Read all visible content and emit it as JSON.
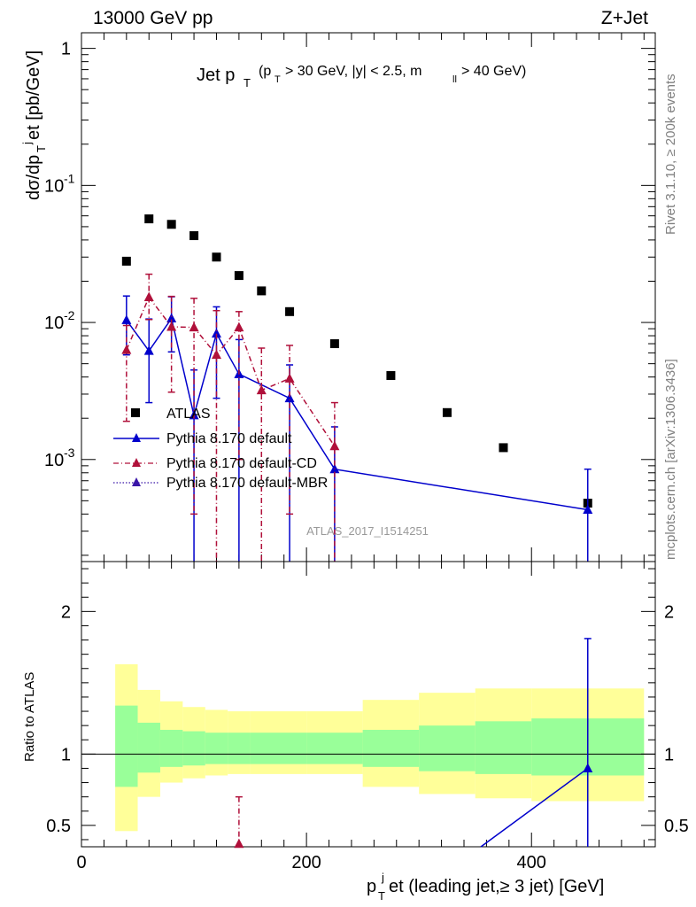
{
  "header": {
    "energy": "13000 GeV pp",
    "process": "Z+Jet",
    "title_main": "Jet p",
    "title_sub": "T",
    "title_cut_a": "(p",
    "title_cut_b": "T",
    "title_cut_c": "> 30 GeV, |y| < 2.5, m",
    "title_cut_d": "ll",
    "title_cut_e": "> 40 GeV)",
    "analysis_id": "ATLAS_2017_I1514251",
    "side_rivet": "Rivet 3.1.10, ≥ 200k events",
    "side_mcplots": "mcplots.cern.ch [arXiv:1306.3436]"
  },
  "chart_data": [
    {
      "type": "scatter",
      "panel": "main",
      "ylabel": "dσ/dp_T^jet [pb/GeV]",
      "yscale": "log",
      "xlim": [
        0,
        510
      ],
      "ylim": [
        0.00018,
        1.3
      ],
      "y_tick_labels": [
        "10^-3",
        "10^-2",
        "10^-1",
        "1"
      ],
      "legend": {
        "placement": "lower-left",
        "entries": [
          "ATLAS",
          "Pythia 8.170 default",
          "Pythia 8.170 default-CD",
          "Pythia 8.170 default-MBR"
        ]
      },
      "series": [
        {
          "name": "ATLAS",
          "color": "#000000",
          "marker": "square",
          "x": [
            40,
            60,
            80,
            100,
            120,
            140,
            160,
            185,
            225,
            275,
            325,
            375,
            450
          ],
          "y": [
            0.028,
            0.057,
            0.052,
            0.043,
            0.03,
            0.022,
            0.017,
            0.012,
            0.007,
            0.0041,
            0.0022,
            0.00122,
            0.00048
          ]
        },
        {
          "name": "Pythia 8.170 default",
          "color": "#0000cc",
          "marker": "triangle",
          "line": "solid",
          "x": [
            40,
            60,
            80,
            100,
            120,
            140,
            185,
            225,
            450
          ],
          "y": [
            0.0104,
            0.0062,
            0.0107,
            0.0021,
            0.0083,
            0.0042,
            0.0028,
            0.00085,
            0.00043
          ],
          "err_lo": [
            0.0046,
            0.0036,
            0.0046,
            0.0021,
            0.0055,
            0.0042,
            0.0028,
            0.00085,
            0.00043
          ],
          "err_hi": [
            0.0052,
            0.0044,
            0.0047,
            0.0024,
            0.0047,
            0.0033,
            0.0021,
            0.00088,
            0.00042
          ]
        },
        {
          "name": "Pythia 8.170 default-CD",
          "color": "#b0103a",
          "marker": "triangle",
          "line": "dash-dot",
          "x": [
            40,
            60,
            80,
            100,
            120,
            140,
            160,
            185,
            225
          ],
          "y": [
            0.0063,
            0.0153,
            0.0093,
            0.0092,
            0.0058,
            0.0092,
            0.0032,
            0.0039,
            0.00125
          ],
          "err_lo": [
            0.0044,
            0.0048,
            0.0062,
            0.0088,
            0.0058,
            0.0082,
            0.0032,
            0.0035,
            0.00125
          ],
          "err_hi": [
            0.0032,
            0.0072,
            0.0062,
            0.0058,
            0.0064,
            0.0028,
            0.0033,
            0.0029,
            0.00135
          ]
        },
        {
          "name": "Pythia 8.170 default-MBR",
          "color": "#3a16a8",
          "marker": "triangle",
          "line": "dotted",
          "x": [],
          "y": []
        }
      ]
    },
    {
      "type": "line",
      "panel": "ratio",
      "ylabel": "Ratio to ATLAS",
      "xlabel": "p_T^jet (leading jet,≥ 3 jet) [GeV]",
      "xlim": [
        0,
        510
      ],
      "ylim": [
        0.35,
        2.35
      ],
      "x_ticks": [
        0,
        200,
        400
      ],
      "y_ticks": [
        0.5,
        1,
        2
      ],
      "bands": {
        "edges": [
          30,
          50,
          70,
          90,
          110,
          130,
          150,
          170,
          200,
          250,
          300,
          350,
          400,
          500
        ],
        "inner": [
          [
            0.77,
            1.34
          ],
          [
            0.87,
            1.22
          ],
          [
            0.91,
            1.17
          ],
          [
            0.92,
            1.16
          ],
          [
            0.93,
            1.15
          ],
          [
            0.93,
            1.15
          ],
          [
            0.93,
            1.15
          ],
          [
            0.93,
            1.15
          ],
          [
            0.93,
            1.15
          ],
          [
            0.91,
            1.17
          ],
          [
            0.88,
            1.2
          ],
          [
            0.86,
            1.23
          ],
          [
            0.85,
            1.25
          ]
        ],
        "outer": [
          [
            0.46,
            1.63
          ],
          [
            0.7,
            1.45
          ],
          [
            0.8,
            1.37
          ],
          [
            0.83,
            1.33
          ],
          [
            0.85,
            1.31
          ],
          [
            0.86,
            1.3
          ],
          [
            0.86,
            1.3
          ],
          [
            0.86,
            1.3
          ],
          [
            0.86,
            1.3
          ],
          [
            0.77,
            1.38
          ],
          [
            0.72,
            1.43
          ],
          [
            0.69,
            1.46
          ],
          [
            0.67,
            1.46
          ]
        ]
      },
      "series": [
        {
          "name": "Pythia 8.170 default",
          "color": "#0000cc",
          "x": [
            355,
            450
          ],
          "y": [
            0.33,
            0.9
          ],
          "markers_x": [
            450
          ],
          "markers_y": [
            0.9
          ],
          "err_lo": [
            0.55
          ],
          "err_hi": [
            0.91
          ]
        },
        {
          "name": "Pythia 8.170 default-CD",
          "color": "#b0103a",
          "x": [],
          "y": [],
          "markers_x": [
            140
          ],
          "markers_y": [
            0.37
          ],
          "err_lo": [
            0.1
          ],
          "err_hi": [
            0.33
          ]
        }
      ]
    }
  ]
}
